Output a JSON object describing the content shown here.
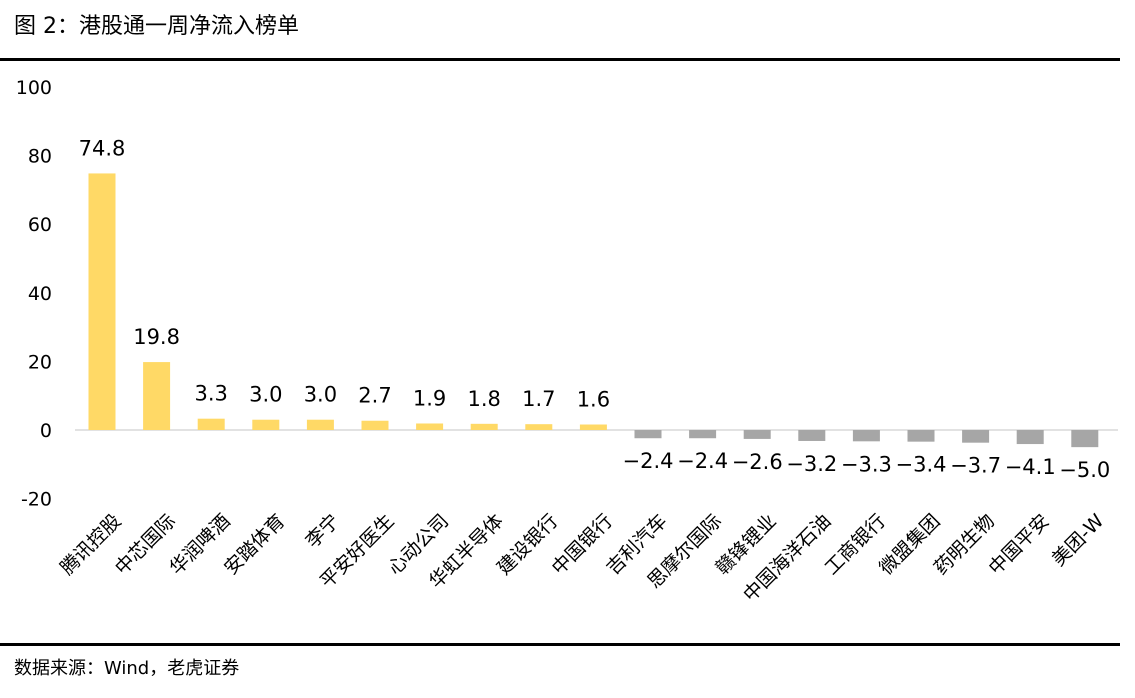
{
  "title": "图 2：港股通一周净流入榜单",
  "source": "数据来源：Wind，老虎证券",
  "chart_data": {
    "type": "bar",
    "categories": [
      "腾讯控股",
      "中芯国际",
      "华润啤酒",
      "安踏体育",
      "李宁",
      "平安好医生",
      "心动公司",
      "华虹半导体",
      "建设银行",
      "中国银行",
      "吉利汽车",
      "思摩尔国际",
      "赣锋锂业",
      "中国海洋石油",
      "工商银行",
      "微盟集团",
      "药明生物",
      "中国平安",
      "美团-W"
    ],
    "values": [
      74.8,
      19.8,
      3.3,
      3.0,
      3.0,
      2.7,
      1.9,
      1.8,
      1.7,
      1.6,
      -2.4,
      -2.4,
      -2.6,
      -3.2,
      -3.3,
      -3.4,
      -3.7,
      -4.1,
      -5.0
    ],
    "value_labels": [
      "74.8",
      "19.8",
      "3.3",
      "3.0",
      "3.0",
      "2.7",
      "1.9",
      "1.8",
      "1.7",
      "1.6",
      "−2.4",
      "−2.4",
      "−2.6",
      "−3.2",
      "−3.3",
      "−3.4",
      "−3.7",
      "−4.1",
      "−5.0"
    ],
    "yticks": [
      "100",
      "80",
      "60",
      "40",
      "20",
      "0",
      "-20"
    ],
    "ytick_values": [
      100,
      80,
      60,
      40,
      20,
      0,
      -20
    ],
    "ylim": [
      -20,
      100
    ],
    "xlabel": "",
    "ylabel": "",
    "grid": false,
    "colors": {
      "positive": "#FFD966",
      "negative": "#A6A6A6",
      "axis": "#D9D9D9"
    }
  }
}
